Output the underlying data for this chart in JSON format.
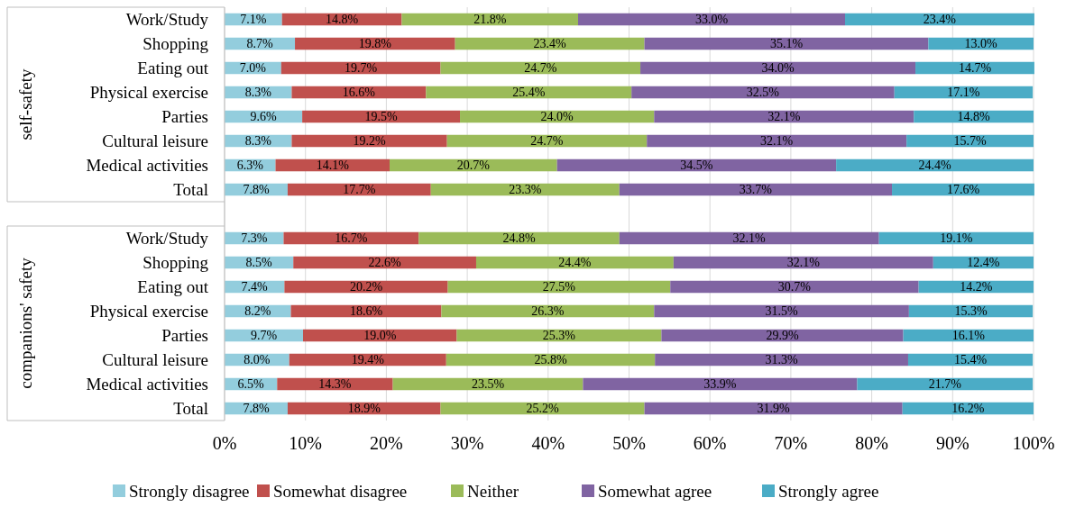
{
  "chart_data": {
    "type": "bar",
    "orientation": "horizontal",
    "stacked": true,
    "categories": [
      "Work/Study",
      "Shopping",
      "Eating out",
      "Physical exercise",
      "Parties",
      "Cultural leisure",
      "Medical activities",
      "Total",
      null,
      "Work/Study",
      "Shopping",
      "Eating out",
      "Physical exercise",
      "Parties",
      "Cultural leisure",
      "Medical activities",
      "Total"
    ],
    "series": [
      {
        "name": "Strongly disagree",
        "color": "#93cddd",
        "values": [
          7.1,
          8.7,
          7.0,
          8.3,
          9.6,
          8.3,
          6.3,
          7.8,
          null,
          7.3,
          8.5,
          7.4,
          8.2,
          9.7,
          8.0,
          6.5,
          7.8
        ],
        "value_labels": [
          "7.1%",
          "8.7%",
          "7.0%",
          "8.3%",
          "9.6%",
          "8.3%",
          "6.3%",
          "7.8%",
          null,
          "7.3%",
          "8.5%",
          "7.4%",
          "8.2%",
          "9.7%",
          "8.0%",
          "6.5%",
          "7.8%"
        ]
      },
      {
        "name": "Somewhat disagree",
        "color": "#c0504d",
        "values": [
          14.8,
          19.8,
          19.7,
          16.6,
          19.5,
          19.2,
          14.1,
          17.7,
          null,
          16.7,
          22.6,
          20.2,
          18.6,
          19.0,
          19.4,
          14.3,
          18.9
        ],
        "value_labels": [
          "14.8%",
          "19.8%",
          "19.7%",
          "16.6%",
          "19.5%",
          "19.2%",
          "14.1%",
          "17.7%",
          null,
          "16.7%",
          "22.6%",
          "20.2%",
          "18.6%",
          "19.0%",
          "19.4%",
          "14.3%",
          "18.9%"
        ]
      },
      {
        "name": "Neither",
        "color": "#9bbb59",
        "values": [
          21.8,
          23.4,
          24.7,
          25.4,
          24.0,
          24.7,
          20.7,
          23.3,
          null,
          24.8,
          24.4,
          27.5,
          26.3,
          25.3,
          25.8,
          23.5,
          25.2
        ],
        "value_labels": [
          "21.8%",
          "23.4%",
          "24.7%",
          "25.4%",
          "24.0%",
          "24.7%",
          "20.7%",
          "23.3%",
          null,
          "24.8%",
          "24.4%",
          "27.5%",
          "26.3%",
          "25.3%",
          "25.8%",
          "23.5%",
          "25.2%"
        ]
      },
      {
        "name": "Somewhat agree",
        "color": "#8064a2",
        "values": [
          33.0,
          35.1,
          34.0,
          32.5,
          32.1,
          32.1,
          34.5,
          33.7,
          null,
          32.1,
          32.1,
          30.7,
          31.5,
          29.9,
          31.3,
          33.9,
          31.9
        ],
        "value_labels": [
          "33.0%",
          "35.1%",
          "34.0%",
          "32.5%",
          "32.1%",
          "32.1%",
          "34.5%",
          "33.7%",
          null,
          "32.1%",
          "32.1%",
          "30.7%",
          "31.5%",
          "29.9%",
          "31.3%",
          "33.9%",
          "31.9%"
        ]
      },
      {
        "name": "Strongly agree",
        "color": "#4bacc6",
        "values": [
          23.4,
          13.0,
          14.7,
          17.1,
          14.8,
          15.7,
          24.4,
          17.6,
          null,
          19.1,
          12.4,
          14.2,
          15.3,
          16.1,
          15.4,
          21.7,
          16.2
        ],
        "value_labels": [
          "23.4%",
          "13.0%",
          "14.7%",
          "17.1%",
          "14.8%",
          "15.7%",
          "24.4%",
          "17.6%",
          null,
          "19.1%",
          "12.4%",
          "14.2%",
          "15.3%",
          "16.1%",
          "15.4%",
          "21.7%",
          "16.2%"
        ]
      }
    ],
    "xlim": [
      0,
      100
    ],
    "xticks": [
      {
        "value": 0,
        "label": "0%"
      },
      {
        "value": 10,
        "label": "10%"
      },
      {
        "value": 20,
        "label": "20%"
      },
      {
        "value": 30,
        "label": "30%"
      },
      {
        "value": 40,
        "label": "40%"
      },
      {
        "value": 50,
        "label": "50%"
      },
      {
        "value": 60,
        "label": "60%"
      },
      {
        "value": 70,
        "label": "70%"
      },
      {
        "value": 80,
        "label": "80%"
      },
      {
        "value": 90,
        "label": "90%"
      },
      {
        "value": 100,
        "label": "100%"
      }
    ],
    "grid": "x",
    "legend": "bottom",
    "annotations": [
      "self-safety",
      "companions' safety"
    ]
  }
}
